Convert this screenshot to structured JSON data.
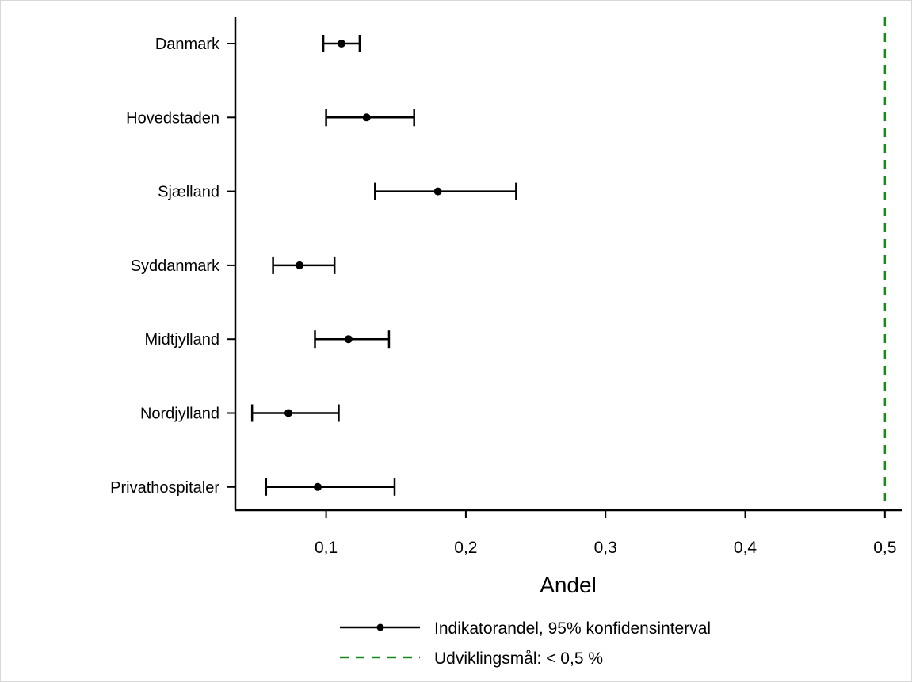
{
  "chart_data": {
    "type": "scatter",
    "orientation": "horizontal",
    "title": "",
    "xlabel": "Andel",
    "ylabel": "",
    "xlim": [
      0.035,
      0.512
    ],
    "x_ticks": [
      0.1,
      0.2,
      0.3,
      0.4,
      0.5
    ],
    "x_tick_labels": [
      "0,1",
      "0,2",
      "0,3",
      "0,4",
      "0,5"
    ],
    "categories": [
      "Danmark",
      "Hovedstaden",
      "Sjælland",
      "Syddanmark",
      "Midtjylland",
      "Nordjylland",
      "Privathospitaler"
    ],
    "series": [
      {
        "name": "Indikatorandel, 95% konfidensinterval",
        "type": "point-with-ci",
        "color": "#000000",
        "values": [
          0.111,
          0.129,
          0.18,
          0.081,
          0.116,
          0.073,
          0.094
        ],
        "ci_low": [
          0.098,
          0.1,
          0.135,
          0.062,
          0.092,
          0.047,
          0.057
        ],
        "ci_high": [
          0.124,
          0.163,
          0.236,
          0.106,
          0.145,
          0.109,
          0.149
        ]
      }
    ],
    "reference_lines": [
      {
        "name": "Udviklingsmål: < 0,5 %",
        "x": 0.5,
        "style": "dashed",
        "color": "#1a8a1a"
      }
    ],
    "legend_position": "bottom",
    "grid": false
  }
}
